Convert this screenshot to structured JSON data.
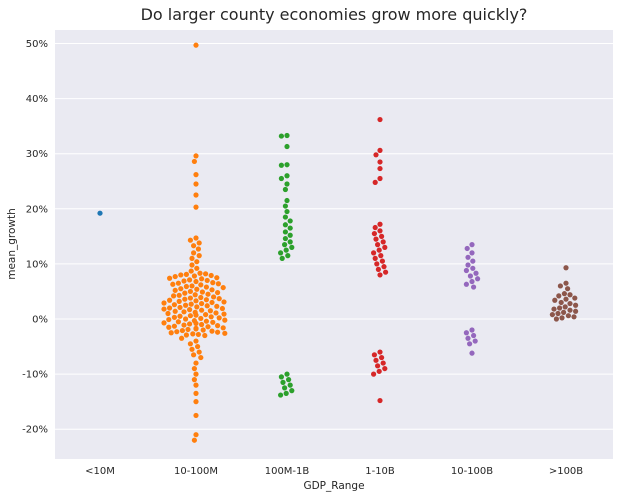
{
  "chart_data": {
    "type": "scatter",
    "subtype": "swarm",
    "title": "Do larger county economies grow more quickly?",
    "xlabel": "GDP_Range",
    "ylabel": "mean_growth",
    "categories": [
      "<10M",
      "10-100M",
      "100M-1B",
      "1-10B",
      "10-100B",
      ">100B"
    ],
    "ylim": [
      -0.26,
      0.52
    ],
    "yticks": [
      -0.2,
      -0.1,
      0.0,
      0.1,
      0.2,
      0.3,
      0.4,
      0.5
    ],
    "ytick_labels": [
      "-20%",
      "-10%",
      "0%",
      "10%",
      "20%",
      "30%",
      "40%",
      "50%"
    ],
    "grid": true,
    "background": "#eaeaf2",
    "series": [
      {
        "category": "<10M",
        "color": "#1f77b4",
        "values": [
          0.192
        ]
      },
      {
        "category": "10-100M",
        "color": "#ff7f0e",
        "values": [
          0.497,
          0.296,
          0.286,
          0.262,
          0.245,
          0.225,
          0.203,
          0.147,
          0.143,
          0.138,
          0.133,
          0.127,
          0.12,
          0.115,
          0.11,
          0.104,
          0.098,
          0.092,
          0.087,
          0.083,
          0.082,
          0.081,
          0.08,
          0.079,
          0.078,
          0.077,
          0.075,
          0.074,
          0.073,
          0.071,
          0.07,
          0.069,
          0.068,
          0.066,
          0.065,
          0.064,
          0.063,
          0.062,
          0.06,
          0.059,
          0.058,
          0.057,
          0.055,
          0.054,
          0.053,
          0.052,
          0.05,
          0.049,
          0.048,
          0.047,
          0.045,
          0.044,
          0.043,
          0.042,
          0.04,
          0.039,
          0.038,
          0.037,
          0.036,
          0.035,
          0.034,
          0.033,
          0.032,
          0.031,
          0.03,
          0.029,
          0.028,
          0.027,
          0.026,
          0.025,
          0.024,
          0.023,
          0.022,
          0.021,
          0.02,
          0.019,
          0.018,
          0.017,
          0.016,
          0.015,
          0.014,
          0.013,
          0.012,
          0.011,
          0.01,
          0.009,
          0.008,
          0.007,
          0.006,
          0.005,
          0.004,
          0.003,
          0.002,
          0.001,
          0.0,
          -0.001,
          -0.002,
          -0.003,
          -0.004,
          -0.005,
          -0.006,
          -0.007,
          -0.008,
          -0.009,
          -0.01,
          -0.011,
          -0.012,
          -0.013,
          -0.014,
          -0.015,
          -0.016,
          -0.017,
          -0.018,
          -0.019,
          -0.02,
          -0.021,
          -0.022,
          -0.023,
          -0.024,
          -0.025,
          -0.026,
          -0.027,
          -0.028,
          -0.029,
          -0.03,
          -0.035,
          -0.04,
          -0.045,
          -0.05,
          -0.055,
          -0.06,
          -0.065,
          -0.07,
          -0.08,
          -0.09,
          -0.1,
          -0.11,
          -0.12,
          -0.135,
          -0.15,
          -0.175,
          -0.21,
          -0.22
        ]
      },
      {
        "category": "100M-1B",
        "color": "#2ca02c",
        "values": [
          0.333,
          0.332,
          0.313,
          0.28,
          0.279,
          0.26,
          0.255,
          0.245,
          0.235,
          0.215,
          0.205,
          0.195,
          0.185,
          0.178,
          0.171,
          0.165,
          0.158,
          0.152,
          0.146,
          0.14,
          0.135,
          0.13,
          0.125,
          0.12,
          0.115,
          0.11,
          -0.1,
          -0.105,
          -0.11,
          -0.115,
          -0.12,
          -0.125,
          -0.13,
          -0.135,
          -0.138
        ]
      },
      {
        "category": "1-10B",
        "color": "#d62728",
        "values": [
          0.362,
          0.306,
          0.298,
          0.285,
          0.273,
          0.255,
          0.248,
          0.172,
          0.166,
          0.16,
          0.155,
          0.15,
          0.145,
          0.14,
          0.135,
          0.13,
          0.125,
          0.12,
          0.115,
          0.11,
          0.105,
          0.1,
          0.095,
          0.09,
          0.085,
          0.08,
          -0.06,
          -0.065,
          -0.07,
          -0.075,
          -0.08,
          -0.085,
          -0.09,
          -0.095,
          -0.1,
          -0.148
        ]
      },
      {
        "category": "10-100B",
        "color": "#9467bd",
        "values": [
          0.135,
          0.128,
          0.12,
          0.112,
          0.105,
          0.098,
          0.092,
          0.088,
          0.083,
          0.078,
          0.073,
          0.068,
          0.063,
          0.058,
          -0.02,
          -0.025,
          -0.03,
          -0.035,
          -0.04,
          -0.045,
          -0.062
        ]
      },
      {
        "category": ">100B",
        "color": "#8c564b",
        "values": [
          0.093,
          0.065,
          0.06,
          0.055,
          0.046,
          0.044,
          0.042,
          0.038,
          0.036,
          0.034,
          0.03,
          0.028,
          0.025,
          0.022,
          0.02,
          0.018,
          0.016,
          0.014,
          0.012,
          0.01,
          0.008,
          0.006,
          0.004,
          0.002,
          0.0
        ]
      }
    ]
  }
}
